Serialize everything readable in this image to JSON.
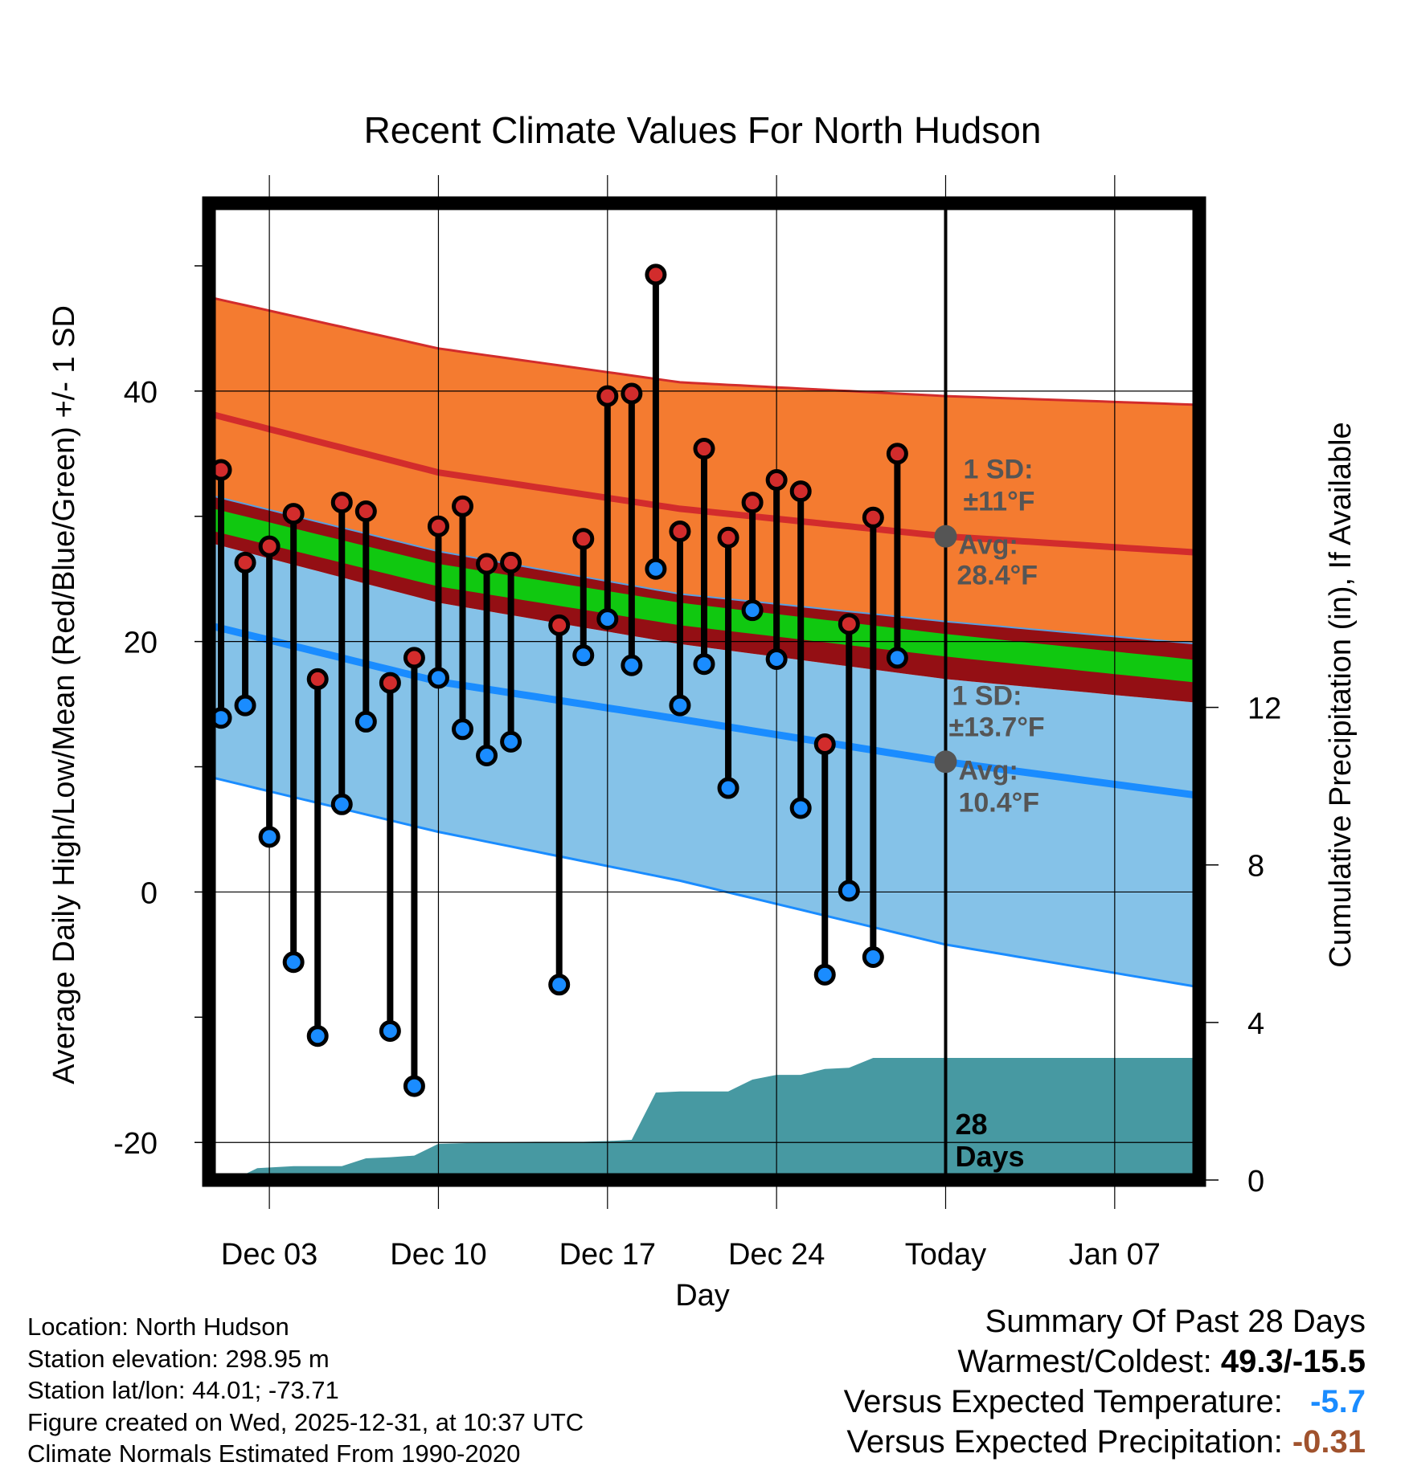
{
  "chart_data": {
    "type": "line",
    "title": "Recent Climate Values For North Hudson",
    "xlabel": "Day",
    "ylabel": "Average Daily High/Low/Mean (Red/Blue/Green) +/- 1 SD",
    "y2label": "Cumulative Precipitation (in), If Available",
    "ylim": [
      -23,
      55
    ],
    "y2lim": [
      0,
      24.8
    ],
    "xlim": [
      0.5,
      41.5
    ],
    "yticks": [
      -20,
      0,
      20,
      40
    ],
    "y2ticks": [
      0,
      4,
      8,
      12
    ],
    "xticks": [
      {
        "day": 3,
        "label": "Dec 03"
      },
      {
        "day": 10,
        "label": "Dec 10"
      },
      {
        "day": 17,
        "label": "Dec 17"
      },
      {
        "day": 24,
        "label": "Dec 24"
      },
      {
        "day": 31,
        "label": "Today"
      },
      {
        "day": 38,
        "label": "Jan 07"
      }
    ],
    "normals": {
      "x": [
        0.5,
        10,
        20,
        31,
        41.5
      ],
      "high_plus_sd": [
        47.5,
        43.4,
        40.7,
        39.6,
        38.9
      ],
      "high_avg": [
        38.2,
        33.5,
        30.6,
        28.4,
        27.1
      ],
      "high_minus_sd": [
        31.7,
        27.2,
        23.8,
        21.6,
        19.8
      ],
      "mean": [
        29.8,
        25.3,
        22.2,
        19.7,
        17.6
      ],
      "low_plus_sd": [
        27.9,
        23.1,
        19.8,
        17.0,
        15.1
      ],
      "low_avg": [
        21.3,
        16.8,
        13.8,
        10.4,
        7.7
      ],
      "low_minus_sd": [
        9.2,
        4.8,
        0.9,
        -4.2,
        -7.6
      ]
    },
    "observations": {
      "day": [
        1,
        2,
        3,
        4,
        5,
        6,
        7,
        8,
        9,
        10,
        11,
        12,
        13,
        15,
        16,
        17,
        18,
        19,
        20,
        21,
        22,
        23,
        24,
        25,
        26,
        27,
        28,
        29
      ],
      "high": [
        33.7,
        26.3,
        27.6,
        30.2,
        17.0,
        31.1,
        30.4,
        16.7,
        18.7,
        29.2,
        30.8,
        26.2,
        26.3,
        21.3,
        28.2,
        39.6,
        39.8,
        49.3,
        28.8,
        35.4,
        28.3,
        31.1,
        32.9,
        32.0,
        11.8,
        21.4,
        29.9,
        35.0
      ],
      "low": [
        13.9,
        14.9,
        4.4,
        -5.6,
        -11.5,
        7.0,
        13.6,
        -11.1,
        -15.5,
        17.1,
        13.0,
        10.9,
        12.0,
        -7.4,
        18.9,
        21.8,
        18.1,
        25.8,
        14.9,
        18.2,
        8.3,
        22.5,
        18.6,
        6.7,
        -6.6,
        0.1,
        -5.2,
        18.7
      ]
    },
    "precipitation": {
      "day": [
        0.5,
        1.5,
        2.5,
        4,
        6,
        7,
        8,
        9,
        10,
        12,
        14,
        16,
        17,
        18,
        19,
        20,
        21,
        22,
        23,
        24,
        25,
        26,
        27,
        28,
        41.5
      ],
      "cumulative": [
        0.0,
        0.0,
        0.3,
        0.35,
        0.35,
        0.55,
        0.58,
        0.62,
        0.92,
        0.95,
        0.97,
        0.97,
        0.99,
        1.02,
        2.22,
        2.25,
        2.25,
        2.25,
        2.55,
        2.67,
        2.67,
        2.82,
        2.85,
        3.1,
        3.1
      ]
    },
    "today_day": 31,
    "annotations": {
      "high_sd": "1 SD:",
      "high_sd_value": "±11°F",
      "high_avg_label": "Avg:",
      "high_avg_value": "28.4°F",
      "low_sd": "1 SD:",
      "low_sd_value": "±13.7°F",
      "low_avg_label": "Avg:",
      "low_avg_value": "10.4°F",
      "days_number": "28",
      "days_word": "Days"
    },
    "colors": {
      "high_band": "#f47b30",
      "high_line": "#d22c2c",
      "overlap_band": "#940f14",
      "mean_band": "#10c810",
      "low_band": "#85c2e8",
      "low_line": "#1a8cff",
      "precip": "#4799a2",
      "high_marker": "#d22c2c",
      "low_marker": "#1a8cff",
      "annotation_text": "#555555"
    }
  },
  "info": {
    "location": "Location: North Hudson",
    "elevation": "Station elevation: 298.95 m",
    "latlon": "Station lat/lon: 44.01; -73.71",
    "created": "Figure created on Wed, 2025-12-31, at 10:37 UTC",
    "normals": "Climate Normals Estimated From 1990-2020"
  },
  "summary": {
    "title": "Summary Of Past 28 Days",
    "warm_cold_label": "Warmest/Coldest:",
    "warm_cold_value": "49.3/-15.5",
    "temp_label": "Versus Expected Temperature:",
    "temp_value": "-5.7",
    "temp_color": "#1a8cff",
    "precip_label": "Versus Expected Precipitation:",
    "precip_value": "-0.31",
    "precip_color": "#a0522d"
  }
}
